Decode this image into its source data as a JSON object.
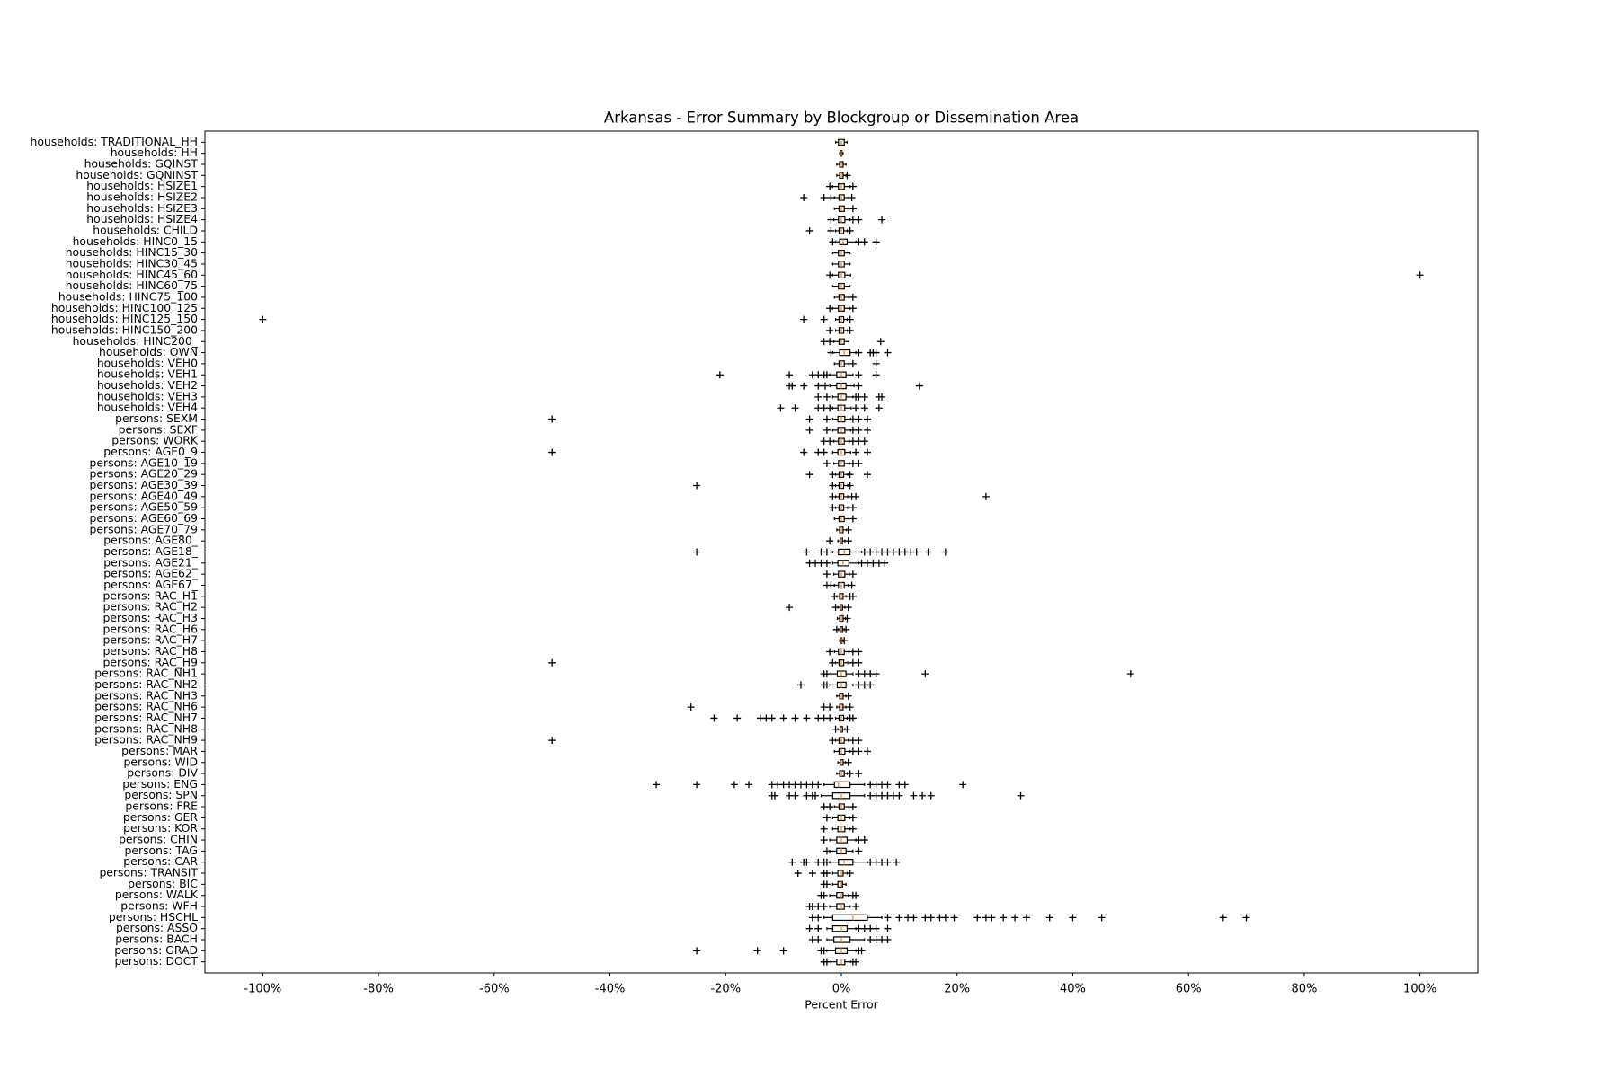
{
  "chart_data": {
    "type": "box",
    "orientation": "horizontal",
    "title": "Arkansas - Error Summary by Blockgroup or Dissemination Area",
    "xlabel": "Percent Error",
    "xlim": [
      -110,
      110
    ],
    "xticks": [
      {
        "value": -100,
        "label": "-100%"
      },
      {
        "value": -80,
        "label": "-80%"
      },
      {
        "value": -60,
        "label": "-60%"
      },
      {
        "value": -40,
        "label": "-40%"
      },
      {
        "value": -20,
        "label": "-20%"
      },
      {
        "value": 0,
        "label": "0%"
      },
      {
        "value": 20,
        "label": "20%"
      },
      {
        "value": 40,
        "label": "40%"
      },
      {
        "value": 60,
        "label": "60%"
      },
      {
        "value": 80,
        "label": "80%"
      },
      {
        "value": 100,
        "label": "100%"
      }
    ],
    "box_color": "#000000",
    "median_color": "#ff7f0e",
    "flier_color": "#000000",
    "categories": [
      "households: TRADITIONAL_HH",
      "households: HH",
      "households: GQINST",
      "households: GQNINST",
      "households: HSIZE1",
      "households: HSIZE2",
      "households: HSIZE3",
      "households: HSIZE4",
      "households: CHILD",
      "households: HINC0_15",
      "households: HINC15_30",
      "households: HINC30_45",
      "households: HINC45_60",
      "households: HINC60_75",
      "households: HINC75_100",
      "households: HINC100_125",
      "households: HINC125_150",
      "households: HINC150_200",
      "households: HINC200_",
      "households: OWN",
      "households: VEH0",
      "households: VEH1",
      "households: VEH2",
      "households: VEH3",
      "households: VEH4",
      "persons: SEXM",
      "persons: SEXF",
      "persons: WORK",
      "persons: AGE0_9",
      "persons: AGE10_19",
      "persons: AGE20_29",
      "persons: AGE30_39",
      "persons: AGE40_49",
      "persons: AGE50_59",
      "persons: AGE60_69",
      "persons: AGE70_79",
      "persons: AGE80_",
      "persons: AGE18_",
      "persons: AGE21_",
      "persons: AGE62_",
      "persons: AGE67_",
      "persons: RAC_H1",
      "persons: RAC_H2",
      "persons: RAC_H3",
      "persons: RAC_H6",
      "persons: RAC_H7",
      "persons: RAC_H8",
      "persons: RAC_H9",
      "persons: RAC_NH1",
      "persons: RAC_NH2",
      "persons: RAC_NH3",
      "persons: RAC_NH6",
      "persons: RAC_NH7",
      "persons: RAC_NH8",
      "persons: RAC_NH9",
      "persons: MAR",
      "persons: WID",
      "persons: DIV",
      "persons: ENG",
      "persons: SPN",
      "persons: FRE",
      "persons: GER",
      "persons: KOR",
      "persons: CHIN",
      "persons: TAG",
      "persons: CAR",
      "persons: TRANSIT",
      "persons: BIC",
      "persons: WALK",
      "persons: WFH",
      "persons: HSCHL",
      "persons: ASSO",
      "persons: BACH",
      "persons: GRAD",
      "persons: DOCT"
    ],
    "boxes": [
      {
        "whislo": -1,
        "q1": -0.5,
        "med": 0,
        "q3": 0.5,
        "whishi": 1,
        "outliers": []
      },
      {
        "whislo": -0.3,
        "q1": -0.1,
        "med": 0,
        "q3": 0.1,
        "whishi": 0.3,
        "outliers": []
      },
      {
        "whislo": -0.8,
        "q1": -0.3,
        "med": 0,
        "q3": 0.3,
        "whishi": 0.8,
        "outliers": []
      },
      {
        "whislo": -0.8,
        "q1": -0.3,
        "med": 0,
        "q3": 0.3,
        "whishi": 0.8,
        "outliers": [
          1
        ]
      },
      {
        "whislo": -1.5,
        "q1": -0.5,
        "med": 0,
        "q3": 0.5,
        "whishi": 1.5,
        "outliers": [
          -2,
          2
        ]
      },
      {
        "whislo": -1.2,
        "q1": -0.4,
        "med": 0,
        "q3": 0.5,
        "whishi": 1.3,
        "outliers": [
          -6.5,
          -3,
          -1.8,
          1.8
        ]
      },
      {
        "whislo": -1.2,
        "q1": -0.4,
        "med": 0,
        "q3": 0.5,
        "whishi": 1.3,
        "outliers": [
          2
        ]
      },
      {
        "whislo": -1.3,
        "q1": -0.5,
        "med": 0,
        "q3": 0.6,
        "whishi": 1.5,
        "outliers": [
          -1.8,
          2,
          3,
          7
        ]
      },
      {
        "whislo": -1,
        "q1": -0.4,
        "med": 0,
        "q3": 0.4,
        "whishi": 1,
        "outliers": [
          -5.5,
          -1.8,
          1.5
        ]
      },
      {
        "whislo": -1,
        "q1": -0.3,
        "med": 0.3,
        "q3": 1,
        "whishi": 2.5,
        "outliers": [
          -1.5,
          3,
          4,
          6
        ]
      },
      {
        "whislo": -1.5,
        "q1": -0.5,
        "med": 0,
        "q3": 0.5,
        "whishi": 1.5,
        "outliers": []
      },
      {
        "whislo": -1.5,
        "q1": -0.5,
        "med": 0,
        "q3": 0.5,
        "whishi": 1.5,
        "outliers": []
      },
      {
        "whislo": -1.5,
        "q1": -0.5,
        "med": 0,
        "q3": 0.6,
        "whishi": 1.6,
        "outliers": [
          -2,
          100
        ]
      },
      {
        "whislo": -1.5,
        "q1": -0.5,
        "med": 0,
        "q3": 0.5,
        "whishi": 1.5,
        "outliers": []
      },
      {
        "whislo": -1.2,
        "q1": -0.4,
        "med": 0,
        "q3": 0.5,
        "whishi": 1.3,
        "outliers": [
          2
        ]
      },
      {
        "whislo": -1.5,
        "q1": -0.5,
        "med": 0,
        "q3": 0.5,
        "whishi": 1.5,
        "outliers": [
          -2,
          2
        ]
      },
      {
        "whislo": -1,
        "q1": -0.4,
        "med": 0,
        "q3": 0.4,
        "whishi": 1,
        "outliers": [
          -100,
          -6.5,
          -3,
          1.5
        ]
      },
      {
        "whislo": -1,
        "q1": -0.4,
        "med": 0,
        "q3": 0.4,
        "whishi": 1,
        "outliers": [
          -2,
          1.5
        ]
      },
      {
        "whislo": -1.3,
        "q1": -0.4,
        "med": 0,
        "q3": 0.5,
        "whishi": 1.3,
        "outliers": [
          -3,
          -2,
          6.8
        ]
      },
      {
        "whislo": -1.5,
        "q1": -0.3,
        "med": 0.5,
        "q3": 1.5,
        "whishi": 2.5,
        "outliers": [
          -1.8,
          3,
          5,
          5.5,
          6,
          8
        ]
      },
      {
        "whislo": -1.2,
        "q1": -0.4,
        "med": 0,
        "q3": 0.5,
        "whishi": 1.3,
        "outliers": [
          2,
          6
        ]
      },
      {
        "whislo": -2,
        "q1": -0.8,
        "med": 0,
        "q3": 0.8,
        "whishi": 2,
        "outliers": [
          -21,
          -9,
          -5,
          -4,
          -3,
          -2.5,
          3,
          6
        ]
      },
      {
        "whislo": -2,
        "q1": -0.8,
        "med": 0,
        "q3": 0.8,
        "whishi": 2.2,
        "outliers": [
          -9,
          -8.5,
          -6.5,
          -4,
          -2.8,
          3,
          13.5
        ]
      },
      {
        "whislo": -1.5,
        "q1": -0.6,
        "med": 0,
        "q3": 0.8,
        "whishi": 2,
        "outliers": [
          -4,
          -2.5,
          2.5,
          3,
          4,
          6.5,
          7
        ]
      },
      {
        "whislo": -1.5,
        "q1": -0.6,
        "med": 0,
        "q3": 0.6,
        "whishi": 1.7,
        "outliers": [
          -10.5,
          -8,
          -4,
          -3,
          -2,
          2.5,
          4,
          6.5
        ]
      },
      {
        "whislo": -1.5,
        "q1": -0.6,
        "med": 0,
        "q3": 0.6,
        "whishi": 1.6,
        "outliers": [
          -50,
          -5.5,
          -2.5,
          2,
          3,
          4.5
        ]
      },
      {
        "whislo": -1.5,
        "q1": -0.6,
        "med": 0,
        "q3": 0.6,
        "whishi": 1.6,
        "outliers": [
          -5.5,
          -2.5,
          2,
          3,
          4.5
        ]
      },
      {
        "whislo": -1.3,
        "q1": -0.5,
        "med": 0,
        "q3": 0.5,
        "whishi": 1.4,
        "outliers": [
          -3,
          -2,
          2,
          3,
          4
        ]
      },
      {
        "whislo": -1.5,
        "q1": -0.6,
        "med": 0,
        "q3": 0.6,
        "whishi": 1.6,
        "outliers": [
          -50,
          -6.5,
          -4,
          -3,
          2.5,
          4.5
        ]
      },
      {
        "whislo": -1.3,
        "q1": -0.5,
        "med": 0,
        "q3": 0.5,
        "whishi": 1.4,
        "outliers": [
          -2.5,
          2,
          3
        ]
      },
      {
        "whislo": -1,
        "q1": -0.4,
        "med": 0,
        "q3": 0.4,
        "whishi": 1.1,
        "outliers": [
          -5.5,
          -1.5,
          1.5,
          4.5
        ]
      },
      {
        "whislo": -1,
        "q1": -0.4,
        "med": 0,
        "q3": 0.4,
        "whishi": 1.1,
        "outliers": [
          -25,
          -1.5,
          1.5
        ]
      },
      {
        "whislo": -1,
        "q1": -0.4,
        "med": 0,
        "q3": 0.4,
        "whishi": 1.1,
        "outliers": [
          -1.5,
          1.8,
          2.5,
          25
        ]
      },
      {
        "whislo": -1,
        "q1": -0.4,
        "med": 0,
        "q3": 0.4,
        "whishi": 1.1,
        "outliers": [
          -1.5,
          2
        ]
      },
      {
        "whislo": -1.2,
        "q1": -0.4,
        "med": 0,
        "q3": 0.5,
        "whishi": 1.3,
        "outliers": [
          2
        ]
      },
      {
        "whislo": -0.8,
        "q1": -0.3,
        "med": 0,
        "q3": 0.3,
        "whishi": 0.9,
        "outliers": [
          1.2
        ]
      },
      {
        "whislo": -0.6,
        "q1": -0.2,
        "med": 0,
        "q3": 0.2,
        "whishi": 0.6,
        "outliers": [
          -2,
          1.2
        ]
      },
      {
        "whislo": -1.5,
        "q1": -0.5,
        "med": 0.5,
        "q3": 1.5,
        "whishi": 3.5,
        "outliers": [
          -25,
          -6,
          -3.5,
          -2.5,
          4,
          5,
          6,
          7,
          8,
          9,
          10,
          11,
          12,
          13,
          15,
          18
        ]
      },
      {
        "whislo": -1.5,
        "q1": -0.6,
        "med": 0.3,
        "q3": 1.3,
        "whishi": 3,
        "outliers": [
          -5.5,
          -4.5,
          -3.5,
          -2.5,
          3.5,
          4.5,
          5.5,
          6.5,
          7.5
        ]
      },
      {
        "whislo": -1.3,
        "q1": -0.5,
        "med": 0,
        "q3": 0.6,
        "whishi": 1.4,
        "outliers": [
          -2.5,
          2
        ]
      },
      {
        "whislo": -1.2,
        "q1": -0.5,
        "med": 0,
        "q3": 0.5,
        "whishi": 1.2,
        "outliers": [
          -2.5,
          -1.8,
          1.8
        ]
      },
      {
        "whislo": -0.8,
        "q1": -0.3,
        "med": 0,
        "q3": 0.3,
        "whishi": 0.8,
        "outliers": [
          -1.2,
          1.5,
          2
        ]
      },
      {
        "whislo": -0.6,
        "q1": -0.2,
        "med": 0,
        "q3": 0.2,
        "whishi": 0.6,
        "outliers": [
          -9,
          -1,
          1.2
        ]
      },
      {
        "whislo": -0.7,
        "q1": -0.3,
        "med": 0,
        "q3": 0.3,
        "whishi": 0.7,
        "outliers": [
          1
        ]
      },
      {
        "whislo": -0.5,
        "q1": -0.2,
        "med": 0,
        "q3": 0.2,
        "whishi": 0.5,
        "outliers": [
          -0.8,
          0.8
        ]
      },
      {
        "whislo": -0.3,
        "q1": -0.1,
        "med": 0,
        "q3": 0.1,
        "whishi": 0.3,
        "outliers": [
          0.5
        ]
      },
      {
        "whislo": -1.2,
        "q1": -0.5,
        "med": 0,
        "q3": 0.5,
        "whishi": 1.3,
        "outliers": [
          -2,
          2,
          3
        ]
      },
      {
        "whislo": -1,
        "q1": -0.4,
        "med": 0,
        "q3": 0.4,
        "whishi": 1.1,
        "outliers": [
          -50,
          -1.5,
          2,
          3
        ]
      },
      {
        "whislo": -1.8,
        "q1": -0.7,
        "med": 0,
        "q3": 0.8,
        "whishi": 2,
        "outliers": [
          -3,
          -2.5,
          3,
          4,
          5,
          6,
          14.5,
          50
        ]
      },
      {
        "whislo": -1.8,
        "q1": -0.7,
        "med": 0,
        "q3": 0.8,
        "whishi": 2,
        "outliers": [
          -7,
          -3,
          -2.5,
          3,
          4,
          5
        ]
      },
      {
        "whislo": -0.8,
        "q1": -0.3,
        "med": 0,
        "q3": 0.3,
        "whishi": 0.8,
        "outliers": [
          1.2
        ]
      },
      {
        "whislo": -0.8,
        "q1": -0.3,
        "med": 0,
        "q3": 0.3,
        "whishi": 0.8,
        "outliers": [
          -26,
          -3,
          -2,
          1.5
        ]
      },
      {
        "whislo": -1,
        "q1": -0.4,
        "med": 0,
        "q3": 0.4,
        "whishi": 1,
        "outliers": [
          -22,
          -18,
          -14,
          -13,
          -12,
          -10,
          -8,
          -6,
          -4,
          -3,
          -2,
          1.5,
          2
        ]
      },
      {
        "whislo": -0.6,
        "q1": -0.2,
        "med": 0,
        "q3": 0.2,
        "whishi": 0.6,
        "outliers": [
          -1,
          1
        ]
      },
      {
        "whislo": -1,
        "q1": -0.4,
        "med": 0,
        "q3": 0.5,
        "whishi": 1.2,
        "outliers": [
          -50,
          -1.5,
          2,
          3
        ]
      },
      {
        "whislo": -1.2,
        "q1": -0.4,
        "med": 0,
        "q3": 0.6,
        "whishi": 1.5,
        "outliers": [
          2,
          3,
          4.5
        ]
      },
      {
        "whislo": -0.6,
        "q1": -0.2,
        "med": 0,
        "q3": 0.3,
        "whishi": 0.7,
        "outliers": [
          1.2
        ]
      },
      {
        "whislo": -0.8,
        "q1": -0.3,
        "med": 0,
        "q3": 0.5,
        "whishi": 1,
        "outliers": [
          1.5,
          3
        ]
      },
      {
        "whislo": -3,
        "q1": -1.2,
        "med": -0.5,
        "q3": 1.5,
        "whishi": 4,
        "outliers": [
          -32,
          -25,
          -18.5,
          -16,
          -12,
          -11,
          -10,
          -9,
          -8,
          -7,
          -6,
          -5,
          -4,
          5,
          6,
          7,
          8,
          10,
          11,
          21
        ]
      },
      {
        "whislo": -3.5,
        "q1": -1.5,
        "med": 0,
        "q3": 1.5,
        "whishi": 4,
        "outliers": [
          -12,
          -11.5,
          -9,
          -8,
          -6,
          -5,
          -4.5,
          5,
          6,
          7,
          8,
          9,
          10,
          12.5,
          14,
          15.5,
          31
        ]
      },
      {
        "whislo": -1.2,
        "q1": -0.4,
        "med": 0,
        "q3": 0.5,
        "whishi": 1.3,
        "outliers": [
          -3,
          -2,
          2
        ]
      },
      {
        "whislo": -1.5,
        "q1": -0.6,
        "med": 0,
        "q3": 0.6,
        "whishi": 1.5,
        "outliers": [
          -2.5,
          2
        ]
      },
      {
        "whislo": -1.5,
        "q1": -0.6,
        "med": 0,
        "q3": 0.6,
        "whishi": 1.5,
        "outliers": [
          -3,
          2
        ]
      },
      {
        "whislo": -2,
        "q1": -0.8,
        "med": 0,
        "q3": 1,
        "whishi": 2.5,
        "outliers": [
          -3,
          3,
          4
        ]
      },
      {
        "whislo": -2,
        "q1": -0.8,
        "med": 0,
        "q3": 0.8,
        "whishi": 2,
        "outliers": [
          -2.5,
          3
        ]
      },
      {
        "whislo": -2,
        "q1": -0.5,
        "med": 0.5,
        "q3": 2,
        "whishi": 4.5,
        "outliers": [
          -8.5,
          -6.5,
          -6,
          -4,
          -3,
          -2.5,
          5,
          6,
          7,
          8,
          9.5
        ]
      },
      {
        "whislo": -1.5,
        "q1": -0.6,
        "med": 0,
        "q3": 0.3,
        "whishi": 1,
        "outliers": [
          -7.5,
          -5,
          -3,
          -2.5,
          1.5
        ]
      },
      {
        "whislo": -1.5,
        "q1": -0.6,
        "med": 0,
        "q3": 0.2,
        "whishi": 0.8,
        "outliers": [
          -3,
          -2.5
        ]
      },
      {
        "whislo": -2,
        "q1": -0.8,
        "med": 0,
        "q3": 0.3,
        "whishi": 1.2,
        "outliers": [
          -3.5,
          -3,
          2,
          2.5
        ]
      },
      {
        "whislo": -2,
        "q1": -0.8,
        "med": 0,
        "q3": 0.5,
        "whishi": 1.5,
        "outliers": [
          -5.5,
          -5,
          -4,
          -3,
          2.5
        ]
      },
      {
        "whislo": -3,
        "q1": -1.5,
        "med": 2,
        "q3": 4.5,
        "whishi": 7,
        "outliers": [
          -5,
          -4,
          8,
          10,
          11.5,
          12.5,
          14.5,
          15.5,
          17,
          18,
          19.5,
          23.5,
          25,
          26,
          28,
          30,
          32,
          36,
          40,
          45,
          66,
          70
        ]
      },
      {
        "whislo": -2.5,
        "q1": -1.5,
        "med": 0,
        "q3": 1,
        "whishi": 2.5,
        "outliers": [
          -5.5,
          -4,
          3,
          4,
          5,
          6,
          8
        ]
      },
      {
        "whislo": -2.5,
        "q1": -1.3,
        "med": 0,
        "q3": 1.5,
        "whishi": 4,
        "outliers": [
          -5,
          -4,
          5,
          6,
          7,
          8
        ]
      },
      {
        "whislo": -2.5,
        "q1": -1,
        "med": 0,
        "q3": 1,
        "whishi": 2.5,
        "outliers": [
          -25,
          -14.5,
          -10,
          -3.5,
          -3,
          3,
          3.5
        ]
      },
      {
        "whislo": -1.8,
        "q1": -0.8,
        "med": 0,
        "q3": 0.6,
        "whishi": 1.6,
        "outliers": [
          -3,
          -2.5,
          2,
          2.5
        ]
      }
    ]
  }
}
